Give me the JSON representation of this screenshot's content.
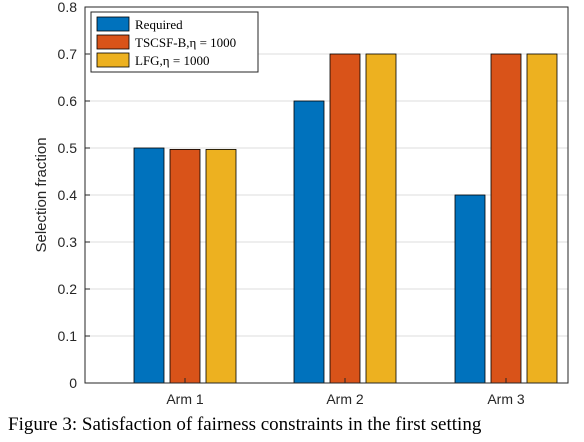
{
  "chart_data": {
    "type": "bar",
    "categories": [
      "Arm 1",
      "Arm 2",
      "Arm 3"
    ],
    "series": [
      {
        "name": "Required",
        "color": "#0072BD",
        "values": [
          0.5,
          0.6,
          0.4
        ]
      },
      {
        "name": "TSCSF-B,η = 1000",
        "color": "#D95319",
        "values": [
          0.497,
          0.7,
          0.7
        ]
      },
      {
        "name": "LFG,η = 1000",
        "color": "#EDB120",
        "values": [
          0.497,
          0.7,
          0.7
        ]
      }
    ],
    "ylabel": "Selection fraction",
    "xlabel": "",
    "ylim": [
      0,
      0.8
    ],
    "yticks": [
      "0",
      "0.1",
      "0.2",
      "0.3",
      "0.4",
      "0.5",
      "0.6",
      "0.7",
      "0.8"
    ],
    "grid": true,
    "legend_position": "top-left"
  },
  "caption": "Figure 3: Satisfaction of fairness constraints in the first setting"
}
